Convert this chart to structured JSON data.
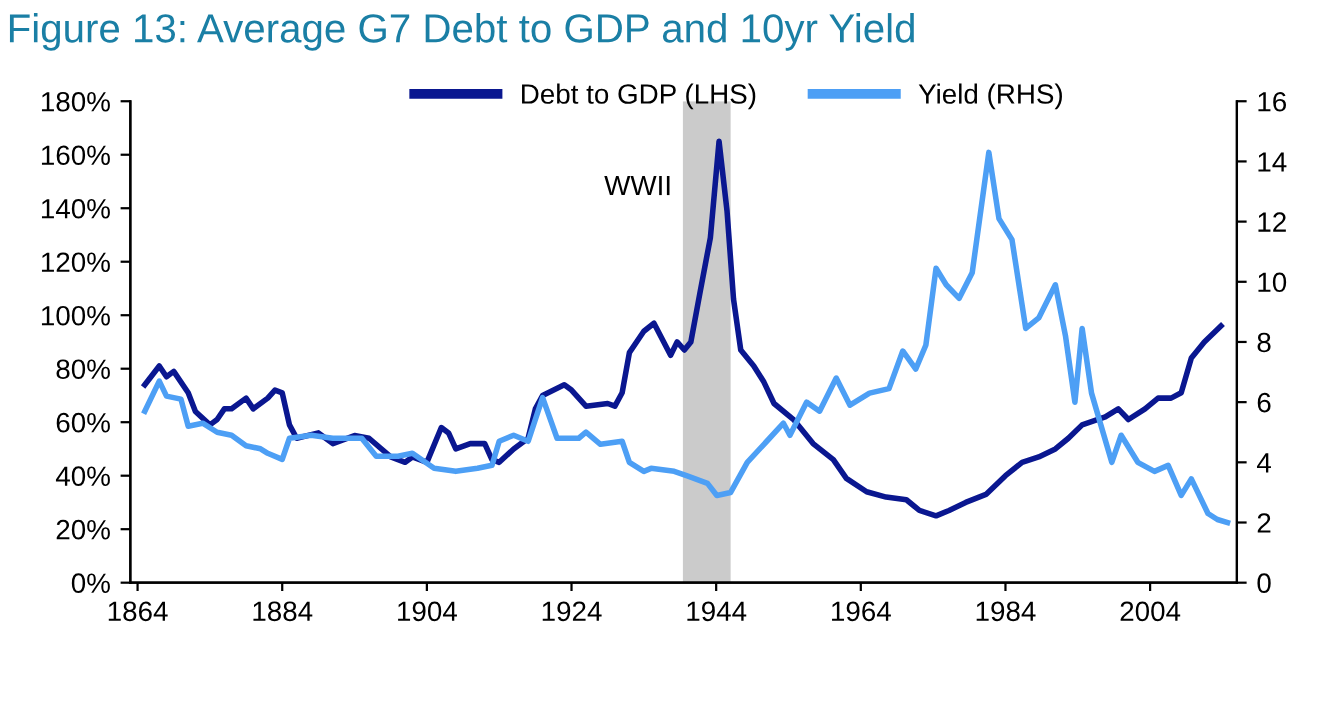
{
  "chart_data": {
    "type": "line",
    "title": "Figure 13: Average G7 Debt to GDP and 10yr Yield",
    "xlim": [
      1863,
      2016
    ],
    "xticks": [
      1864,
      1884,
      1904,
      1924,
      1944,
      1964,
      1984,
      2004
    ],
    "ylim": [
      0,
      180
    ],
    "yticks": [
      {
        "value": 0,
        "label": "0%"
      },
      {
        "value": 20,
        "label": "20%"
      },
      {
        "value": 40,
        "label": "40%"
      },
      {
        "value": 60,
        "label": "60%"
      },
      {
        "value": 80,
        "label": "80%"
      },
      {
        "value": 100,
        "label": "100%"
      },
      {
        "value": 120,
        "label": "120%"
      },
      {
        "value": 140,
        "label": "140%"
      },
      {
        "value": 160,
        "label": "160%"
      },
      {
        "value": 180,
        "label": "180%"
      }
    ],
    "y2lim": [
      0,
      16
    ],
    "y2ticks": [
      0,
      2,
      4,
      6,
      8,
      10,
      12,
      14,
      16
    ],
    "grid": false,
    "legend": "top",
    "marker": "none",
    "line_style": "solid",
    "bands": [
      {
        "axis": "x",
        "from": 1939.4,
        "to": 1946,
        "label": "WWII",
        "color": "#a8a8a8"
      }
    ],
    "series": [
      {
        "name": "Debt to GDP (LHS)",
        "color": "#0a1790",
        "x": [
          1865,
          1867,
          1868,
          1869,
          1871,
          1872,
          1874,
          1875,
          1876,
          1877,
          1879,
          1880,
          1882,
          1883,
          1884,
          1885,
          1886,
          1889,
          1891,
          1894,
          1896,
          1899,
          1901,
          1902,
          1904,
          1906,
          1907,
          1908,
          1910,
          1912,
          1913,
          1914,
          1916,
          1918,
          1919,
          1920,
          1923,
          1924,
          1926,
          1929,
          1930,
          1931,
          1932,
          1934,
          1935.4,
          1937.7,
          1938.6,
          1939.6,
          1940.5,
          1941.8,
          1943.2,
          1944.4,
          1945.5,
          1946.4,
          1947.4,
          1949.2,
          1950.6,
          1952,
          1954.7,
          1957.4,
          1960.2,
          1962,
          1964.8,
          1967.5,
          1970.3,
          1972.1,
          1974.4,
          1976.2,
          1978.5,
          1981.3,
          1984,
          1986.3,
          1988.6,
          1990.9,
          1992.7,
          1994.6,
          1997.8,
          1999.6,
          2001,
          2003.3,
          2005.1,
          2006.9,
          2008.3,
          2009.7,
          2011.5,
          2013.8
        ],
        "values": [
          74,
          81,
          77,
          79,
          71,
          64,
          59,
          61,
          65,
          65,
          69,
          65,
          69,
          72,
          71,
          59,
          54,
          56,
          52,
          55,
          54,
          47,
          45,
          47,
          45,
          58,
          56,
          50,
          52,
          52,
          46,
          45,
          50,
          54,
          65,
          70,
          74,
          72,
          66,
          67,
          66,
          71,
          86,
          94,
          97,
          85,
          90,
          87,
          90,
          109,
          129,
          165,
          139,
          106,
          87,
          81,
          75,
          67,
          61,
          52,
          46,
          39,
          34,
          32,
          31,
          27,
          25,
          27,
          30,
          33,
          40,
          45,
          47,
          50,
          54,
          59,
          62,
          65,
          61,
          65,
          69,
          69,
          71,
          84,
          90,
          96
        ]
      },
      {
        "name": "Yield (RHS)",
        "color": "#4d9ff5",
        "axis": "y2",
        "x": [
          1865,
          1867,
          1868,
          1870,
          1871,
          1873,
          1875,
          1877,
          1879,
          1881,
          1882,
          1884,
          1885,
          1888,
          1891,
          1895,
          1897,
          1900,
          1902,
          1905,
          1908,
          1911,
          1913,
          1914,
          1916,
          1918,
          1920,
          1922,
          1925,
          1926,
          1928,
          1931,
          1932,
          1934,
          1935,
          1938.2,
          1940,
          1942.8,
          1944.1,
          1946,
          1948.3,
          1951,
          1953.3,
          1954.2,
          1956.5,
          1958.3,
          1960.6,
          1962.5,
          1965.2,
          1967.9,
          1969.8,
          1971.6,
          1973,
          1974.4,
          1975.8,
          1977.6,
          1979.4,
          1981.7,
          1983.1,
          1984.9,
          1986.8,
          1988.6,
          1990.9,
          1992.3,
          1993.6,
          1994.6,
          1995.9,
          1998.7,
          2000,
          2002.3,
          2004.6,
          2006.5,
          2008.3,
          2009.7,
          2012,
          2013.3,
          2014.7
        ],
        "values": [
          5.7,
          6.7,
          6.2,
          6.1,
          5.2,
          5.3,
          5.0,
          4.9,
          4.55,
          4.45,
          4.3,
          4.1,
          4.8,
          4.9,
          4.8,
          4.8,
          4.2,
          4.2,
          4.3,
          3.8,
          3.7,
          3.8,
          3.9,
          4.7,
          4.9,
          4.7,
          6.15,
          4.8,
          4.8,
          5.0,
          4.6,
          4.7,
          4.0,
          3.7,
          3.8,
          3.7,
          3.55,
          3.3,
          2.9,
          3.0,
          4.0,
          4.7,
          5.3,
          4.9,
          6.0,
          5.7,
          6.8,
          5.9,
          6.3,
          6.45,
          7.7,
          7.1,
          7.9,
          10.45,
          9.9,
          9.45,
          10.3,
          14.3,
          12.1,
          11.4,
          8.45,
          8.8,
          9.9,
          8.2,
          6.0,
          8.45,
          6.3,
          4.0,
          4.9,
          4.0,
          3.7,
          3.9,
          2.9,
          3.45,
          2.3,
          2.1,
          2.0
        ]
      }
    ]
  }
}
